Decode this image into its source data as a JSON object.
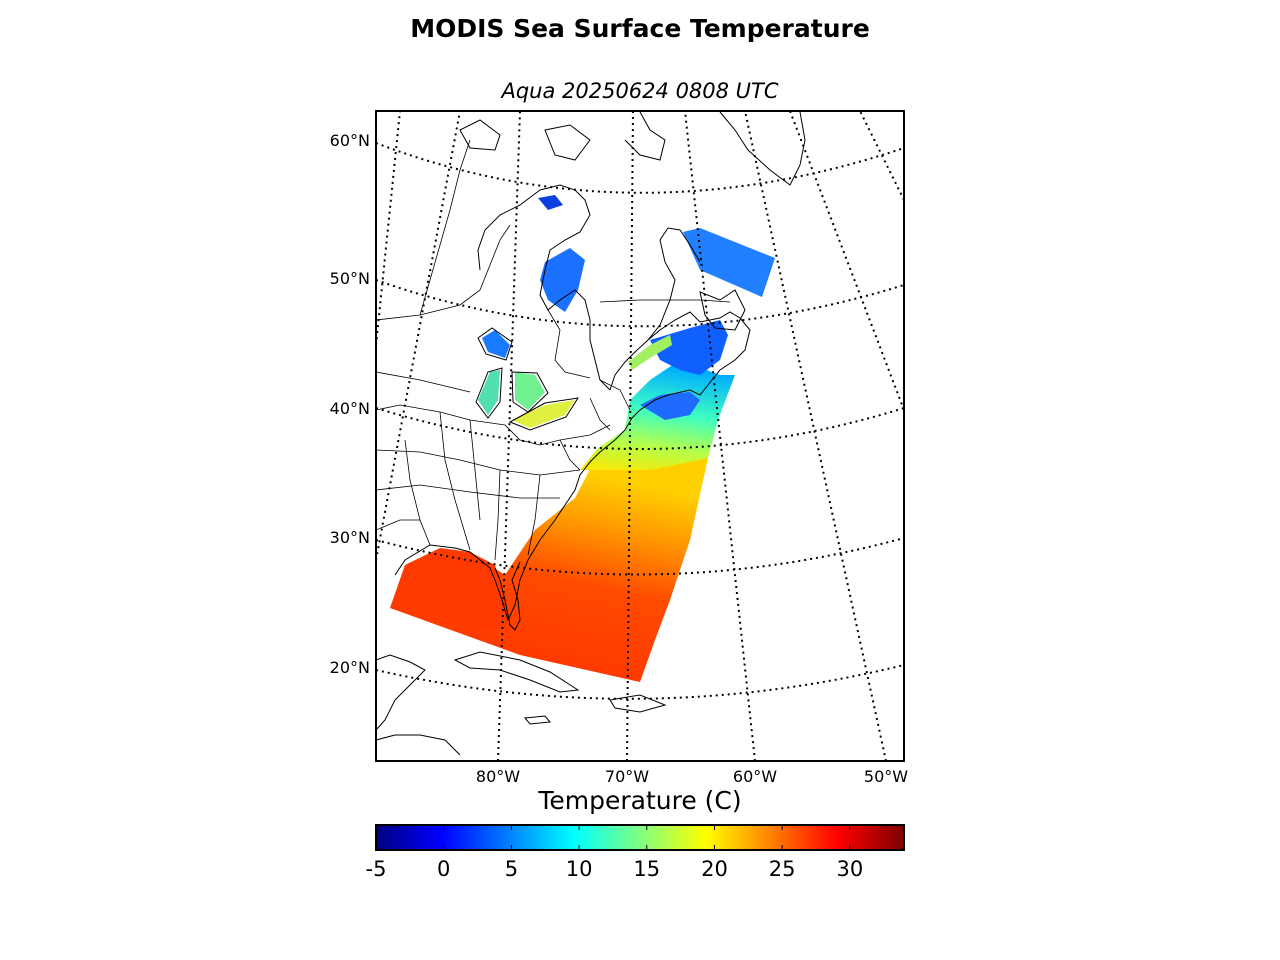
{
  "title": "MODIS Sea Surface Temperature",
  "subtitle": "Aqua 20250624 0808 UTC",
  "map": {
    "lat_labels": [
      "60°N",
      "50°N",
      "40°N",
      "30°N",
      "20°N"
    ],
    "lon_labels": [
      "80°W",
      "70°W",
      "60°W",
      "50°W"
    ]
  },
  "colorbar": {
    "label": "Temperature (C)",
    "min": -5,
    "max": 34,
    "ticks": [
      "-5",
      "0",
      "5",
      "10",
      "15",
      "20",
      "25",
      "30"
    ],
    "colors": [
      "#00007f",
      "#0000ff",
      "#007fff",
      "#00ffff",
      "#7fff7f",
      "#ffff00",
      "#ff7f00",
      "#ff0000",
      "#7f0000"
    ]
  }
}
